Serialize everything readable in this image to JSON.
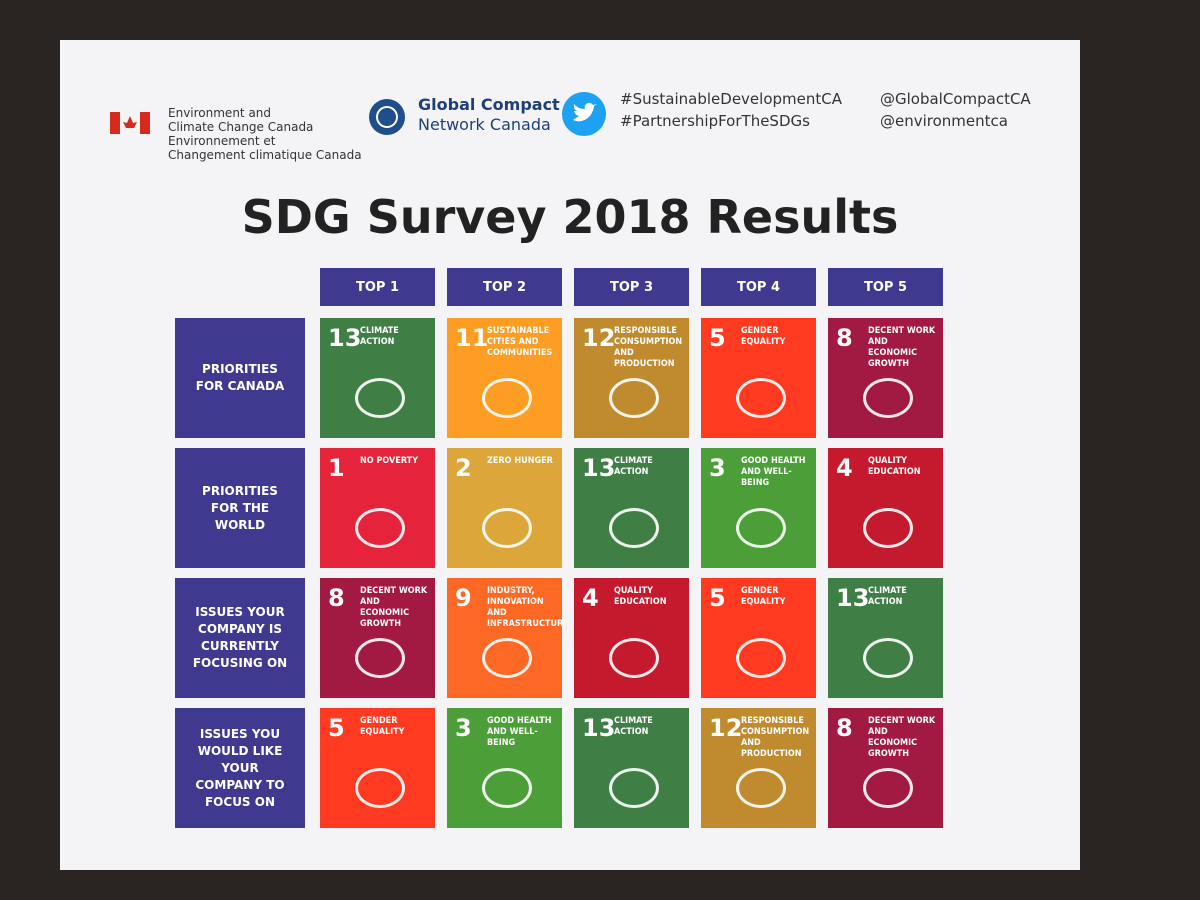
{
  "header": {
    "government": {
      "line1": "Environment and",
      "line2": "Climate Change Canada",
      "line3": "Environnement et",
      "line4": "Changement climatique Canada"
    },
    "partner": {
      "line1": "Global Compact",
      "line2": "Network Canada"
    },
    "hashtags": [
      "#SustainableDevelopmentCA",
      "#PartnershipForTheSDGs"
    ],
    "handles": [
      "@GlobalCompactCA",
      "@environmentca"
    ]
  },
  "title": "SDG Survey 2018 Results",
  "table": {
    "columns": [
      "TOP 1",
      "TOP 2",
      "TOP 3",
      "TOP 4",
      "TOP 5"
    ],
    "rows": [
      {
        "label": "PRIORITIES FOR CANADA",
        "cells": [
          {
            "number": "13",
            "label": "CLIMATE ACTION",
            "color": "#3f7e44"
          },
          {
            "number": "11",
            "label": "SUSTAINABLE CITIES AND COMMUNITIES",
            "color": "#fd9d24"
          },
          {
            "number": "12",
            "label": "RESPONSIBLE CONSUMPTION AND PRODUCTION",
            "color": "#bf8b2e"
          },
          {
            "number": "5",
            "label": "GENDER EQUALITY",
            "color": "#ff3a21"
          },
          {
            "number": "8",
            "label": "DECENT WORK AND ECONOMIC GROWTH",
            "color": "#a21942"
          }
        ]
      },
      {
        "label": "PRIORITIES FOR THE WORLD",
        "cells": [
          {
            "number": "1",
            "label": "NO POVERTY",
            "color": "#e5243b"
          },
          {
            "number": "2",
            "label": "ZERO HUNGER",
            "color": "#dda63a"
          },
          {
            "number": "13",
            "label": "CLIMATE ACTION",
            "color": "#3f7e44"
          },
          {
            "number": "3",
            "label": "GOOD HEALTH AND WELL-BEING",
            "color": "#4c9f38"
          },
          {
            "number": "4",
            "label": "QUALITY EDUCATION",
            "color": "#c5192d"
          }
        ]
      },
      {
        "label": "ISSUES YOUR COMPANY IS CURRENTLY FOCUSING ON",
        "cells": [
          {
            "number": "8",
            "label": "DECENT WORK AND ECONOMIC GROWTH",
            "color": "#a21942"
          },
          {
            "number": "9",
            "label": "INDUSTRY, INNOVATION AND INFRASTRUCTURE",
            "color": "#fd6925"
          },
          {
            "number": "4",
            "label": "QUALITY EDUCATION",
            "color": "#c5192d"
          },
          {
            "number": "5",
            "label": "GENDER EQUALITY",
            "color": "#ff3a21"
          },
          {
            "number": "13",
            "label": "CLIMATE ACTION",
            "color": "#3f7e44"
          }
        ]
      },
      {
        "label": "ISSUES YOU WOULD LIKE YOUR COMPANY TO FOCUS ON",
        "cells": [
          {
            "number": "5",
            "label": "GENDER EQUALITY",
            "color": "#ff3a21"
          },
          {
            "number": "3",
            "label": "GOOD HEALTH AND WELL-BEING",
            "color": "#4c9f38"
          },
          {
            "number": "13",
            "label": "CLIMATE ACTION",
            "color": "#3f7e44"
          },
          {
            "number": "12",
            "label": "RESPONSIBLE CONSUMPTION AND PRODUCTION",
            "color": "#bf8b2e"
          },
          {
            "number": "8",
            "label": "DECENT WORK AND ECONOMIC GROWTH",
            "color": "#a21942"
          }
        ]
      }
    ]
  }
}
